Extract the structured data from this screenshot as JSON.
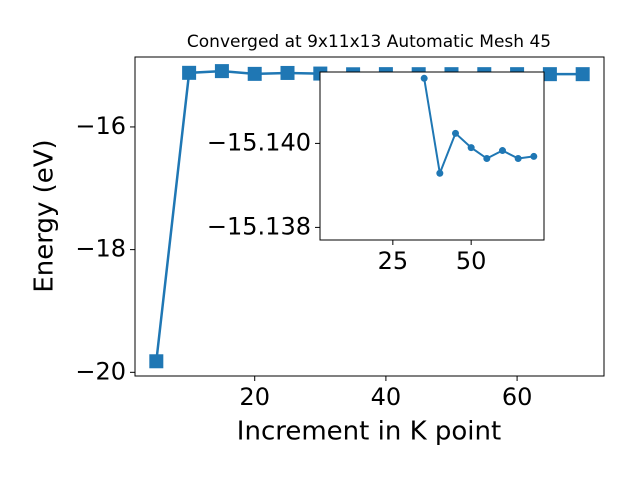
{
  "chart_data": [
    {
      "type": "line",
      "title": "Converged at 9x11x13 Automatic Mesh 45",
      "x_label": "Increment in K point",
      "y_label": "Energy (eV)",
      "x": [
        5,
        10,
        15,
        20,
        25,
        30,
        35,
        40,
        45,
        50,
        55,
        60,
        65,
        70
      ],
      "series": [
        {
          "color": "#1f77b4",
          "marker": "square",
          "values": [
            -19.82,
            -15.118,
            -15.09,
            -15.135,
            -15.12,
            -15.13,
            -15.1416,
            -15.1393,
            -15.1402,
            -15.1399,
            -15.1396,
            -15.1398,
            -15.1396,
            -15.1397
          ]
        }
      ],
      "xlim": [
        1.75,
        73.25
      ],
      "ylim": [
        -20.06,
        -14.86
      ],
      "xticks": [
        20,
        40,
        60
      ],
      "yticks": [
        {
          "value": -20,
          "label": "−20"
        },
        {
          "value": -18,
          "label": "−18"
        },
        {
          "value": -16,
          "label": "−16"
        }
      ]
    },
    {
      "type": "line",
      "x": [
        35,
        40,
        45,
        50,
        55,
        60,
        65,
        70
      ],
      "series": [
        {
          "color": "#1f77b4",
          "marker": "circle",
          "values": [
            -15.14155,
            -15.13929,
            -15.14024,
            -15.1399,
            -15.13964,
            -15.13983,
            -15.13964,
            -15.13969
          ]
        }
      ],
      "xlim": [
        1.75,
        73.25
      ],
      "ylim": [
        -15.1377,
        -15.1417
      ],
      "xticks": [
        25,
        50
      ],
      "yticks": [
        {
          "value": -15.14,
          "label": "−15.140"
        },
        {
          "value": -15.138,
          "label": "−15.138"
        }
      ]
    }
  ]
}
